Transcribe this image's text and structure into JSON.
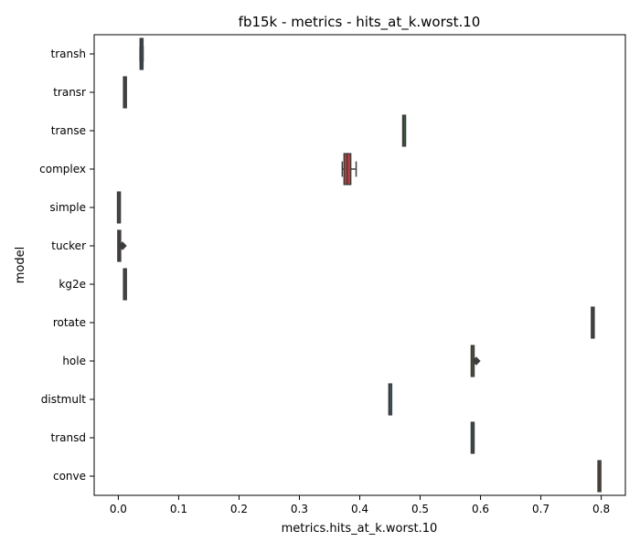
{
  "chart_data": {
    "type": "box",
    "orientation": "horizontal",
    "title": "fb15k - metrics - hits_at_k.worst.10",
    "xlabel": "metrics.hits_at_k.worst.10",
    "ylabel": "model",
    "xlim": [
      -0.04,
      0.84
    ],
    "xticks": [
      0.0,
      0.1,
      0.2,
      0.3,
      0.4,
      0.5,
      0.6,
      0.7,
      0.8
    ],
    "xtick_labels": [
      "0.0",
      "0.1",
      "0.2",
      "0.3",
      "0.4",
      "0.5",
      "0.6",
      "0.7",
      "0.8"
    ],
    "grid": false,
    "categories": [
      "transh",
      "transr",
      "transe",
      "complex",
      "simple",
      "tucker",
      "kg2e",
      "rotate",
      "hole",
      "distmult",
      "transd",
      "conve"
    ],
    "colors": [
      "#3274a1",
      "#e1812c",
      "#3a923a",
      "#c03d3e",
      "#9372b2",
      "#845b53",
      "#d684bd",
      "#7f7f7f",
      "#a9aa35",
      "#2eb0c1",
      "#3274a1",
      "#e1812c"
    ],
    "line_color": "#3d3d3d",
    "boxes": [
      {
        "whislo": 0.036,
        "q1": 0.037,
        "med": 0.038,
        "q3": 0.04,
        "whishi": 0.041,
        "fliers": []
      },
      {
        "whislo": 0.01,
        "q1": 0.0105,
        "med": 0.011,
        "q3": 0.0115,
        "whishi": 0.012,
        "fliers": []
      },
      {
        "whislo": 0.472,
        "q1": 0.4725,
        "med": 0.473,
        "q3": 0.4745,
        "whishi": 0.475,
        "fliers": []
      },
      {
        "whislo": 0.371,
        "q1": 0.374,
        "med": 0.379,
        "q3": 0.385,
        "whishi": 0.394,
        "fliers": []
      },
      {
        "whislo": 0.001,
        "q1": 0.001,
        "med": 0.001,
        "q3": 0.001,
        "whishi": 0.001,
        "fliers": []
      },
      {
        "whislo": 0.001,
        "q1": 0.0012,
        "med": 0.0015,
        "q3": 0.0018,
        "whishi": 0.002,
        "fliers": [
          0.007
        ]
      },
      {
        "whislo": 0.01,
        "q1": 0.0105,
        "med": 0.011,
        "q3": 0.0115,
        "whishi": 0.012,
        "fliers": []
      },
      {
        "whislo": 0.785,
        "q1": 0.7855,
        "med": 0.786,
        "q3": 0.7865,
        "whishi": 0.787,
        "fliers": []
      },
      {
        "whislo": 0.586,
        "q1": 0.5865,
        "med": 0.587,
        "q3": 0.5875,
        "whishi": 0.588,
        "fliers": [
          0.593
        ]
      },
      {
        "whislo": 0.449,
        "q1": 0.4495,
        "med": 0.45,
        "q3": 0.4515,
        "whishi": 0.452,
        "fliers": []
      },
      {
        "whislo": 0.586,
        "q1": 0.5865,
        "med": 0.587,
        "q3": 0.5875,
        "whishi": 0.588,
        "fliers": []
      },
      {
        "whislo": 0.796,
        "q1": 0.7965,
        "med": 0.797,
        "q3": 0.7975,
        "whishi": 0.798,
        "fliers": []
      }
    ]
  }
}
